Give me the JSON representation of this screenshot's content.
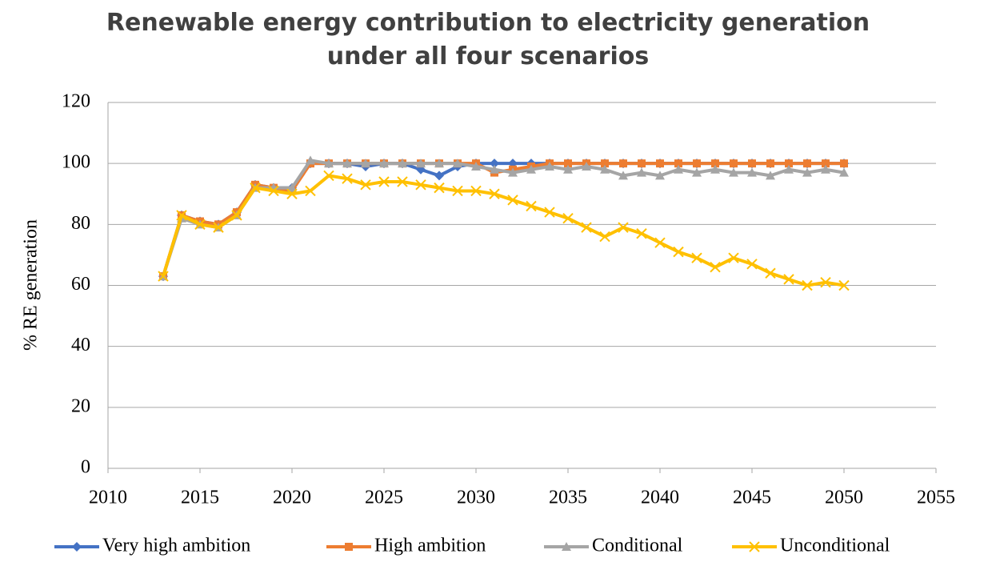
{
  "chart_data": {
    "type": "line",
    "title": "Renewable energy contribution to electricity generation under all four scenarios",
    "ylabel": "% RE generation",
    "x": [
      2013,
      2014,
      2015,
      2016,
      2017,
      2018,
      2019,
      2020,
      2021,
      2022,
      2023,
      2024,
      2025,
      2026,
      2027,
      2028,
      2029,
      2030,
      2031,
      2032,
      2033,
      2034,
      2035,
      2036,
      2037,
      2038,
      2039,
      2040,
      2041,
      2042,
      2043,
      2044,
      2045,
      2046,
      2047,
      2048,
      2049,
      2050
    ],
    "series": [
      {
        "name": "Very high ambition",
        "color": "#4472c4",
        "marker": "diamond",
        "values": [
          63,
          83,
          81,
          80,
          84,
          93,
          92,
          92,
          100,
          100,
          100,
          99,
          100,
          100,
          98,
          96,
          99,
          100,
          100,
          100,
          100,
          100,
          100,
          100,
          100,
          100,
          100,
          100,
          100,
          100,
          100,
          100,
          100,
          100,
          100,
          100,
          100,
          100
        ]
      },
      {
        "name": "High ambition",
        "color": "#ed7d31",
        "marker": "square",
        "values": [
          63,
          83,
          81,
          80,
          84,
          93,
          92,
          91,
          100,
          100,
          100,
          100,
          100,
          100,
          100,
          100,
          100,
          100,
          97,
          98,
          99,
          100,
          100,
          100,
          100,
          100,
          100,
          100,
          100,
          100,
          100,
          100,
          100,
          100,
          100,
          100,
          100,
          100
        ]
      },
      {
        "name": "Conditional",
        "color": "#a5a5a5",
        "marker": "triangle",
        "values": [
          63,
          82,
          80,
          79,
          83,
          92,
          92,
          92,
          101,
          100,
          100,
          100,
          100,
          100,
          100,
          100,
          100,
          99,
          98,
          97,
          98,
          99,
          98,
          99,
          98,
          96,
          97,
          96,
          98,
          97,
          98,
          97,
          97,
          96,
          98,
          97,
          98,
          97
        ]
      },
      {
        "name": "Unconditional",
        "color": "#ffc000",
        "marker": "x",
        "values": [
          63,
          83,
          80,
          79,
          83,
          92,
          91,
          90,
          91,
          96,
          95,
          93,
          94,
          94,
          93,
          92,
          91,
          91,
          90,
          88,
          86,
          84,
          82,
          79,
          76,
          79,
          77,
          74,
          71,
          69,
          66,
          69,
          67,
          64,
          62,
          60,
          61,
          60
        ]
      }
    ],
    "xlim": [
      2010,
      2055
    ],
    "xticks": [
      2010,
      2015,
      2020,
      2025,
      2030,
      2035,
      2040,
      2045,
      2050,
      2055
    ],
    "ylim": [
      0,
      120
    ],
    "yticks": [
      0,
      20,
      40,
      60,
      80,
      100,
      120
    ],
    "grid": true,
    "legend": "bottom"
  }
}
